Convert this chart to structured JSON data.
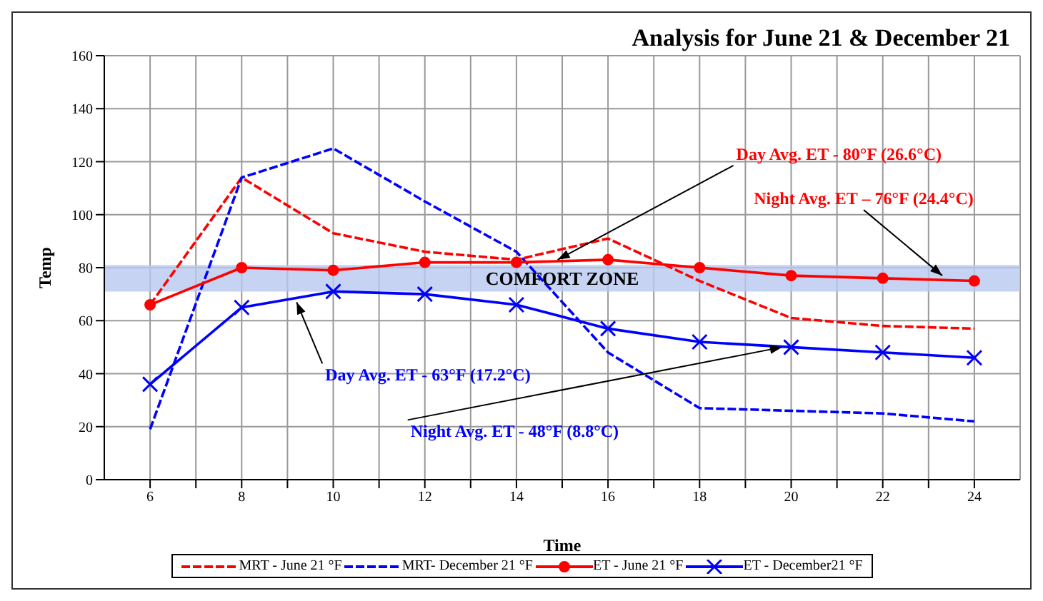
{
  "chart_data": {
    "type": "line",
    "title": "Analysis for June 21 & December 21",
    "xlabel": "Time",
    "ylabel": "Temp",
    "x": [
      6,
      8,
      10,
      12,
      14,
      16,
      18,
      20,
      22,
      24
    ],
    "series": [
      {
        "name": "MRT - June 21 °F",
        "color": "#ff0000",
        "line_style": "dashed",
        "marker": "none",
        "values": [
          66,
          114,
          93,
          86,
          83,
          91,
          75,
          61,
          58,
          57
        ]
      },
      {
        "name": "MRT- December 21 °F",
        "color": "#0000ff",
        "line_style": "dashed",
        "marker": "none",
        "values": [
          19,
          114,
          125,
          105,
          86,
          48,
          27,
          26,
          25,
          22
        ]
      },
      {
        "name": "ET - June 21 °F",
        "color": "#ff0000",
        "line_style": "solid",
        "marker": "circle",
        "values": [
          66,
          80,
          79,
          82,
          82,
          83,
          80,
          77,
          76,
          75
        ]
      },
      {
        "name": "ET - December21 °F",
        "color": "#0000ff",
        "line_style": "solid",
        "marker": "cross",
        "values": [
          36,
          65,
          71,
          70,
          66,
          57,
          52,
          50,
          48,
          46
        ]
      }
    ],
    "xlim": [
      5,
      25
    ],
    "xticks": [
      6,
      {
        "value": 7,
        "label": null
      },
      8,
      {
        "value": 9,
        "label": null
      },
      10,
      {
        "value": 11,
        "label": null
      },
      12,
      {
        "value": 13,
        "label": null
      },
      14,
      {
        "value": 15,
        "label": null
      },
      16,
      {
        "value": 17,
        "label": null
      },
      18,
      {
        "value": 19,
        "label": null
      },
      20,
      {
        "value": 21,
        "label": null
      },
      22,
      {
        "value": 23,
        "label": null
      },
      24
    ],
    "ylim": [
      0,
      160
    ],
    "yticks": [
      0,
      20,
      40,
      60,
      80,
      100,
      120,
      140,
      160
    ],
    "grid": true,
    "legend": "bottom",
    "bands": [
      {
        "axis": "y",
        "from": 71,
        "to": 81,
        "label": "COMFORT ZONE",
        "color": "#b8c8f0"
      }
    ],
    "annotations": [
      {
        "text": "Day Avg. ET - 80°F (26.6°C)",
        "x": 14.9,
        "y": 83
      },
      {
        "text": "Night Avg. ET – 76°F (24.4°C)",
        "x": 23.3,
        "y": 77
      },
      {
        "text": "Day Avg. ET - 63°F (17.2°C)",
        "x": 9.2,
        "y": 67
      },
      {
        "text": "Night Avg. ET - 48°F (8.8°C)",
        "x": 19.8,
        "y": 50
      }
    ]
  }
}
